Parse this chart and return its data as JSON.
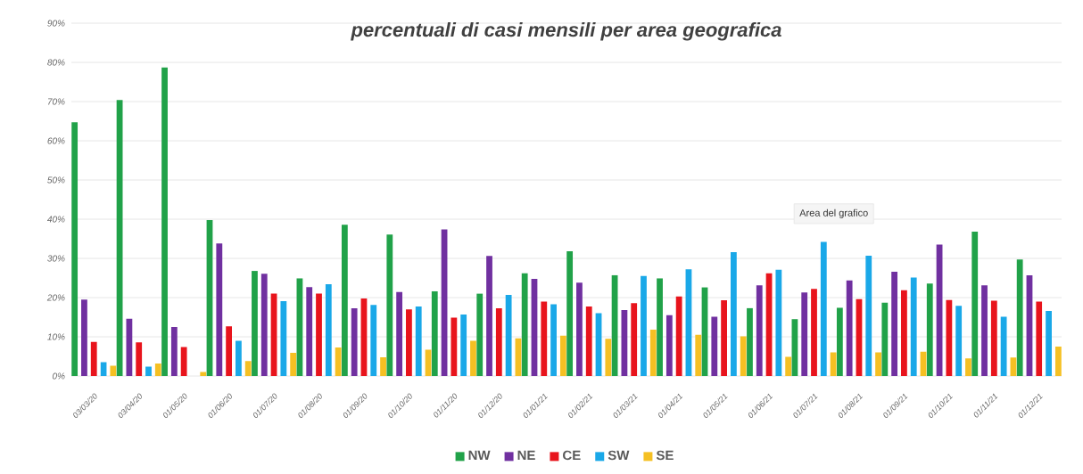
{
  "chart_data": {
    "type": "bar",
    "title": "percentuali di casi mensili per area geografica",
    "categories": [
      "03/03/20",
      "03/04/20",
      "01/05/20",
      "01/06/20",
      "01/07/20",
      "01/08/20",
      "01/09/20",
      "01/10/20",
      "01/11/20",
      "01/12/20",
      "01/01/21",
      "01/02/21",
      "01/03/21",
      "01/04/21",
      "01/05/21",
      "01/06/21",
      "01/07/21",
      "01/08/21",
      "01/09/21",
      "01/10/21",
      "01/11/21",
      "01/12/21"
    ],
    "series": [
      {
        "name": "NW",
        "color": "#21a249",
        "values": [
          64.7,
          70.4,
          78.7,
          39.8,
          26.8,
          24.9,
          38.6,
          36.1,
          21.6,
          21.0,
          26.2,
          31.8,
          25.7,
          24.9,
          22.6,
          17.3,
          14.5,
          17.4,
          18.7,
          23.6,
          36.8,
          29.7
        ]
      },
      {
        "name": "NE",
        "color": "#7030a0",
        "values": [
          19.5,
          14.6,
          12.5,
          33.8,
          26.1,
          22.7,
          17.3,
          21.4,
          37.4,
          30.6,
          24.8,
          23.8,
          16.8,
          15.5,
          15.1,
          23.1,
          21.3,
          24.4,
          26.6,
          33.5,
          23.1,
          25.7
        ]
      },
      {
        "name": "CE",
        "color": "#e8141c",
        "values": [
          8.7,
          8.6,
          7.4,
          12.7,
          21.0,
          21.0,
          19.8,
          17.0,
          14.9,
          17.3,
          19.0,
          17.7,
          18.6,
          20.3,
          19.3,
          26.2,
          22.2,
          19.6,
          21.9,
          19.4,
          19.2,
          19.0
        ]
      },
      {
        "name": "SW",
        "color": "#1aa8e8",
        "values": [
          3.5,
          2.4,
          0,
          9.0,
          19.1,
          23.4,
          18.1,
          17.7,
          15.7,
          20.7,
          18.3,
          16.0,
          25.5,
          27.2,
          31.6,
          27.1,
          34.2,
          30.7,
          25.1,
          17.9,
          15.1,
          16.6
        ]
      },
      {
        "name": "SE",
        "color": "#f5c023",
        "values": [
          2.6,
          3.2,
          1.0,
          3.8,
          5.9,
          7.3,
          4.8,
          6.7,
          9.0,
          9.6,
          10.3,
          9.5,
          11.8,
          10.5,
          10.1,
          4.9,
          6.0,
          6.0,
          6.2,
          4.5,
          4.7,
          7.5
        ]
      }
    ],
    "ylim": [
      0,
      90
    ],
    "yticks": [
      {
        "value": 0,
        "label": "0%"
      },
      {
        "value": 10,
        "label": "10%"
      },
      {
        "value": 20,
        "label": "20%"
      },
      {
        "value": 30,
        "label": "30%"
      },
      {
        "value": 40,
        "label": "40%"
      },
      {
        "value": 50,
        "label": "50%"
      },
      {
        "value": 60,
        "label": "60%"
      },
      {
        "value": 70,
        "label": "70%"
      },
      {
        "value": 80,
        "label": "80%"
      },
      {
        "value": 90,
        "label": "90%"
      }
    ],
    "grid": "y",
    "legend": "bottom",
    "annotations": [
      "Area del grafico"
    ]
  }
}
